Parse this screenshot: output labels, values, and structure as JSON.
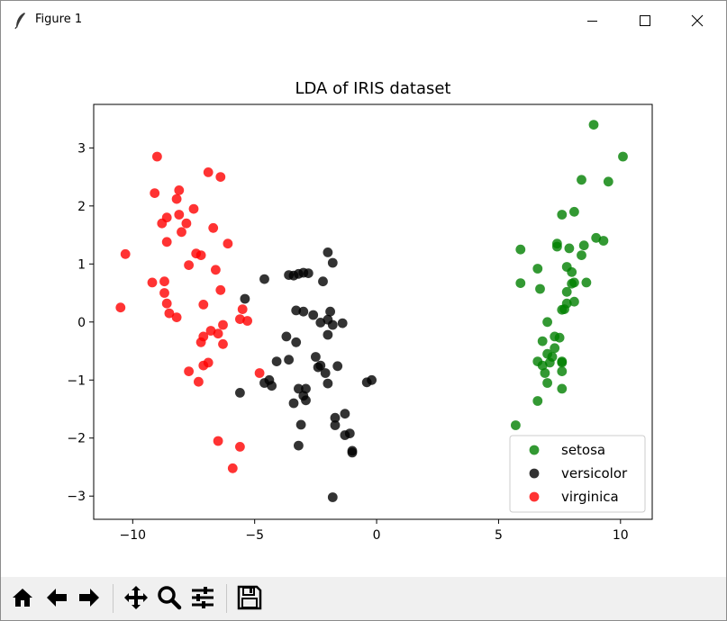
{
  "window": {
    "title": "Figure 1",
    "icons": [
      "feather-icon",
      "minimize-icon",
      "maximize-icon",
      "close-icon"
    ]
  },
  "toolbar": {
    "tools": [
      "home-icon",
      "back-icon",
      "forward-icon",
      "pan-icon",
      "zoom-icon",
      "configure-subplots-icon",
      "save-icon"
    ]
  },
  "chart_data": {
    "type": "scatter",
    "title": "LDA of IRIS dataset",
    "xlabel": "",
    "ylabel": "",
    "xlim": [
      -11.6,
      11.3
    ],
    "ylim": [
      -3.4,
      3.75
    ],
    "xticks": [
      -10,
      -5,
      0,
      5,
      10
    ],
    "xtick_labels": [
      "−10",
      "−5",
      "0",
      "5",
      "10"
    ],
    "yticks": [
      -3,
      -2,
      -1,
      0,
      1,
      2,
      3
    ],
    "ytick_labels": [
      "−3",
      "−2",
      "−1",
      "0",
      "1",
      "2",
      "3"
    ],
    "grid": false,
    "legend": {
      "placement": "lower right"
    },
    "series": [
      {
        "name": "setosa",
        "color": "#008000",
        "points": [
          [
            8.9,
            3.4
          ],
          [
            10.1,
            2.85
          ],
          [
            9.5,
            2.42
          ],
          [
            8.4,
            2.45
          ],
          [
            8.1,
            1.9
          ],
          [
            7.6,
            1.85
          ],
          [
            9.3,
            1.4
          ],
          [
            9.0,
            1.45
          ],
          [
            8.5,
            1.32
          ],
          [
            7.9,
            1.27
          ],
          [
            7.4,
            1.35
          ],
          [
            7.4,
            1.3
          ],
          [
            5.9,
            1.25
          ],
          [
            7.8,
            0.95
          ],
          [
            8.0,
            0.86
          ],
          [
            6.6,
            0.92
          ],
          [
            8.4,
            1.15
          ],
          [
            5.9,
            0.67
          ],
          [
            8.1,
            0.68
          ],
          [
            8.0,
            0.66
          ],
          [
            8.6,
            0.68
          ],
          [
            6.7,
            0.57
          ],
          [
            7.8,
            0.52
          ],
          [
            8.1,
            0.35
          ],
          [
            7.8,
            0.32
          ],
          [
            7.7,
            0.22
          ],
          [
            7.6,
            0.21
          ],
          [
            7.0,
            0.0
          ],
          [
            7.3,
            -0.25
          ],
          [
            7.5,
            -0.27
          ],
          [
            6.8,
            -0.33
          ],
          [
            7.3,
            -0.45
          ],
          [
            7.0,
            -0.55
          ],
          [
            7.2,
            -0.6
          ],
          [
            7.1,
            -0.7
          ],
          [
            6.6,
            -0.68
          ],
          [
            7.6,
            -0.68
          ],
          [
            6.8,
            -0.75
          ],
          [
            7.6,
            -0.7
          ],
          [
            7.6,
            -0.85
          ],
          [
            6.9,
            -0.88
          ],
          [
            7.0,
            -1.05
          ],
          [
            7.6,
            -1.15
          ],
          [
            6.6,
            -1.36
          ],
          [
            5.7,
            -1.78
          ]
        ]
      },
      {
        "name": "versicolor",
        "color": "#000000",
        "points": [
          [
            -2.0,
            1.2
          ],
          [
            -1.8,
            1.02
          ],
          [
            -4.6,
            0.74
          ],
          [
            -3.6,
            0.81
          ],
          [
            -3.4,
            0.8
          ],
          [
            -3.2,
            0.83
          ],
          [
            -3.0,
            0.85
          ],
          [
            -2.8,
            0.84
          ],
          [
            -2.2,
            0.7
          ],
          [
            -5.4,
            0.4
          ],
          [
            -3.3,
            0.2
          ],
          [
            -3.0,
            0.18
          ],
          [
            -2.6,
            0.12
          ],
          [
            -1.9,
            0.18
          ],
          [
            -2.0,
            0.04
          ],
          [
            -1.4,
            -0.02
          ],
          [
            -2.3,
            -0.01
          ],
          [
            -1.8,
            -0.05
          ],
          [
            -3.7,
            -0.25
          ],
          [
            -3.3,
            -0.35
          ],
          [
            -2.0,
            -0.22
          ],
          [
            -4.1,
            -0.68
          ],
          [
            -3.6,
            -0.65
          ],
          [
            -2.5,
            -0.6
          ],
          [
            -2.4,
            -0.78
          ],
          [
            -2.3,
            -0.75
          ],
          [
            -1.6,
            -0.76
          ],
          [
            -2.1,
            -0.88
          ],
          [
            -4.4,
            -1.0
          ],
          [
            -4.3,
            -1.1
          ],
          [
            -4.6,
            -1.05
          ],
          [
            -3.2,
            -1.15
          ],
          [
            -2.9,
            -1.15
          ],
          [
            -2.0,
            -1.06
          ],
          [
            -0.4,
            -1.04
          ],
          [
            -0.2,
            -1.0
          ],
          [
            -5.6,
            -1.22
          ],
          [
            -3.0,
            -1.27
          ],
          [
            -2.9,
            -1.35
          ],
          [
            -3.4,
            -1.4
          ],
          [
            -1.7,
            -1.65
          ],
          [
            -1.3,
            -1.58
          ],
          [
            -1.7,
            -1.78
          ],
          [
            -3.1,
            -1.77
          ],
          [
            -1.3,
            -1.95
          ],
          [
            -1.1,
            -1.92
          ],
          [
            -1.0,
            -2.22
          ],
          [
            -1.0,
            -2.25
          ],
          [
            -3.2,
            -2.13
          ],
          [
            -1.8,
            -3.02
          ]
        ]
      },
      {
        "name": "virginica",
        "color": "#ff0000",
        "points": [
          [
            -9.0,
            2.85
          ],
          [
            -6.9,
            2.58
          ],
          [
            -6.4,
            2.5
          ],
          [
            -9.1,
            2.22
          ],
          [
            -8.1,
            2.27
          ],
          [
            -8.2,
            2.12
          ],
          [
            -7.5,
            1.95
          ],
          [
            -8.6,
            1.8
          ],
          [
            -8.8,
            1.7
          ],
          [
            -8.1,
            1.85
          ],
          [
            -7.8,
            1.7
          ],
          [
            -8.0,
            1.55
          ],
          [
            -6.7,
            1.62
          ],
          [
            -8.6,
            1.38
          ],
          [
            -6.1,
            1.35
          ],
          [
            -7.4,
            1.18
          ],
          [
            -7.2,
            1.15
          ],
          [
            -10.3,
            1.17
          ],
          [
            -7.7,
            0.98
          ],
          [
            -6.6,
            0.9
          ],
          [
            -9.2,
            0.68
          ],
          [
            -8.7,
            0.7
          ],
          [
            -6.4,
            0.55
          ],
          [
            -8.7,
            0.5
          ],
          [
            -7.1,
            0.3
          ],
          [
            -8.6,
            0.32
          ],
          [
            -8.5,
            0.15
          ],
          [
            -8.2,
            0.08
          ],
          [
            -10.5,
            0.25
          ],
          [
            -5.5,
            0.22
          ],
          [
            -5.6,
            0.05
          ],
          [
            -5.3,
            0.02
          ],
          [
            -6.3,
            -0.05
          ],
          [
            -6.8,
            -0.15
          ],
          [
            -6.5,
            -0.2
          ],
          [
            -7.1,
            -0.25
          ],
          [
            -7.2,
            -0.35
          ],
          [
            -6.3,
            -0.38
          ],
          [
            -6.9,
            -0.7
          ],
          [
            -7.1,
            -0.75
          ],
          [
            -7.7,
            -0.85
          ],
          [
            -4.8,
            -0.88
          ],
          [
            -7.3,
            -1.03
          ],
          [
            -6.5,
            -2.05
          ],
          [
            -5.6,
            -2.15
          ],
          [
            -5.9,
            -2.52
          ]
        ]
      }
    ]
  }
}
